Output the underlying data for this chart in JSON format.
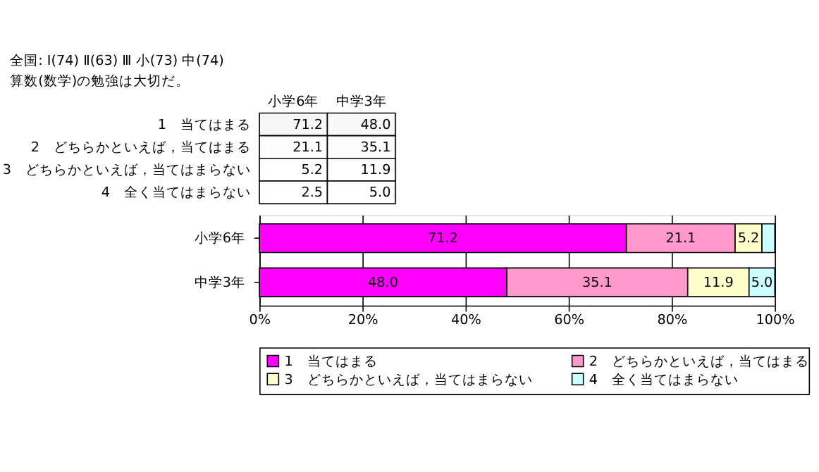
{
  "chart_data": [
    {
      "type": "heatmap",
      "title": "全国: Ⅰ(74)  Ⅱ(63)  Ⅲ 小(73) 中(74)",
      "subtitle": "算数(数学)の勉強は大切だ。",
      "categories": [
        "小学6年",
        "中学3年"
      ],
      "y_categories": [
        "1　当てはまる",
        "2　どちらかといえば，当てはまる",
        "3　どちらかといえば，当てはまらない",
        "4　全く当てはまらない"
      ],
      "cells": [
        [
          71.2,
          48.0
        ],
        [
          21.1,
          35.1
        ],
        [
          5.2,
          11.9
        ],
        [
          2.5,
          5.0
        ]
      ],
      "cell_labels": [
        [
          "71.2",
          "48.0"
        ],
        [
          "21.1",
          "35.1"
        ],
        [
          "5.2",
          "11.9"
        ],
        [
          "2.5",
          "5.0"
        ]
      ],
      "data_labels": true
    },
    {
      "type": "bar",
      "orientation": "horizontal",
      "stacked": true,
      "categories": [
        "小学6年",
        "中学3年"
      ],
      "series": [
        {
          "name": "1　当てはまる",
          "color": "#ff00ff",
          "values": [
            71.2,
            48.0
          ],
          "value_labels": [
            "71.2",
            "48.0"
          ]
        },
        {
          "name": "2　どちらかといえば，当てはまる",
          "color": "#ff99cc",
          "values": [
            21.1,
            35.1
          ],
          "value_labels": [
            "21.1",
            "35.1"
          ]
        },
        {
          "name": "3　どちらかといえば，当てはまらない",
          "color": "#ffffcc",
          "values": [
            5.2,
            11.9
          ],
          "value_labels": [
            "5.2",
            "11.9"
          ]
        },
        {
          "name": "4　全く当てはまらない",
          "color": "#ccffff",
          "values": [
            2.5,
            5.0
          ],
          "value_labels": [
            null,
            "5.0"
          ]
        }
      ],
      "xlim": [
        0,
        100
      ],
      "xticks": [
        {
          "value": 0,
          "label": "0%"
        },
        {
          "value": 20,
          "label": "20%"
        },
        {
          "value": 40,
          "label": "40%"
        },
        {
          "value": 60,
          "label": "60%"
        },
        {
          "value": 80,
          "label": "80%"
        },
        {
          "value": 100,
          "label": "100%"
        }
      ],
      "grid": "x",
      "legend": "bottom"
    }
  ]
}
